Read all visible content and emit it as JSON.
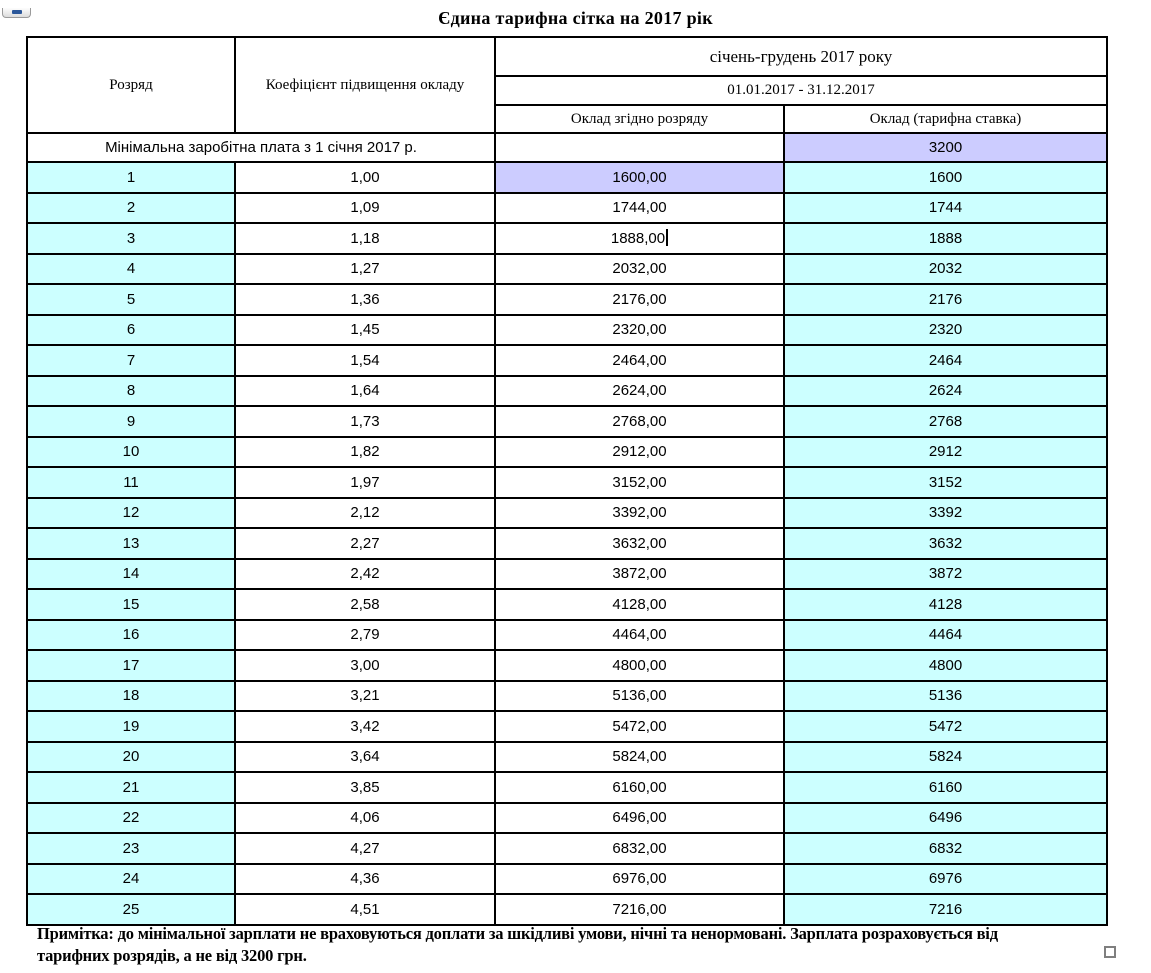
{
  "page": {
    "title": "Єдина тарифна сітка на 2017 рік"
  },
  "colors": {
    "cyan": "#CCFFFF",
    "lavender": "#CCCCFF",
    "border": "#000000",
    "accent_handle_blue": "#2B579A"
  },
  "table": {
    "headers": {
      "grade": "Розряд",
      "coefficient": "Коефіцієнт підвищення окладу",
      "period_group": "січень-грудень 2017 року",
      "period_dates": "01.01.2017 - 31.12.2017",
      "salary_by_grade": "Оклад згідно розряду",
      "tariff_rate": "Оклад (тарифна ставка)"
    },
    "min_wage_row": {
      "label": "Мінімальна заробітна плата з 1 січня 2017 р.",
      "salary_by_grade": "",
      "tariff_rate": "3200"
    },
    "caret_at_grade": "3",
    "rows": [
      {
        "grade": "1",
        "coefficient": "1,00",
        "salary_by_grade": "1600,00",
        "tariff_rate": "1600",
        "highlight_salary": true
      },
      {
        "grade": "2",
        "coefficient": "1,09",
        "salary_by_grade": "1744,00",
        "tariff_rate": "1744"
      },
      {
        "grade": "3",
        "coefficient": "1,18",
        "salary_by_grade": "1888,00",
        "tariff_rate": "1888"
      },
      {
        "grade": "4",
        "coefficient": "1,27",
        "salary_by_grade": "2032,00",
        "tariff_rate": "2032"
      },
      {
        "grade": "5",
        "coefficient": "1,36",
        "salary_by_grade": "2176,00",
        "tariff_rate": "2176"
      },
      {
        "grade": "6",
        "coefficient": "1,45",
        "salary_by_grade": "2320,00",
        "tariff_rate": "2320"
      },
      {
        "grade": "7",
        "coefficient": "1,54",
        "salary_by_grade": "2464,00",
        "tariff_rate": "2464"
      },
      {
        "grade": "8",
        "coefficient": "1,64",
        "salary_by_grade": "2624,00",
        "tariff_rate": "2624"
      },
      {
        "grade": "9",
        "coefficient": "1,73",
        "salary_by_grade": "2768,00",
        "tariff_rate": "2768"
      },
      {
        "grade": "10",
        "coefficient": "1,82",
        "salary_by_grade": "2912,00",
        "tariff_rate": "2912"
      },
      {
        "grade": "11",
        "coefficient": "1,97",
        "salary_by_grade": "3152,00",
        "tariff_rate": "3152"
      },
      {
        "grade": "12",
        "coefficient": "2,12",
        "salary_by_grade": "3392,00",
        "tariff_rate": "3392"
      },
      {
        "grade": "13",
        "coefficient": "2,27",
        "salary_by_grade": "3632,00",
        "tariff_rate": "3632"
      },
      {
        "grade": "14",
        "coefficient": "2,42",
        "salary_by_grade": "3872,00",
        "tariff_rate": "3872"
      },
      {
        "grade": "15",
        "coefficient": "2,58",
        "salary_by_grade": "4128,00",
        "tariff_rate": "4128"
      },
      {
        "grade": "16",
        "coefficient": "2,79",
        "salary_by_grade": "4464,00",
        "tariff_rate": "4464"
      },
      {
        "grade": "17",
        "coefficient": "3,00",
        "salary_by_grade": "4800,00",
        "tariff_rate": "4800"
      },
      {
        "grade": "18",
        "coefficient": "3,21",
        "salary_by_grade": "5136,00",
        "tariff_rate": "5136"
      },
      {
        "grade": "19",
        "coefficient": "3,42",
        "salary_by_grade": "5472,00",
        "tariff_rate": "5472"
      },
      {
        "grade": "20",
        "coefficient": "3,64",
        "salary_by_grade": "5824,00",
        "tariff_rate": "5824"
      },
      {
        "grade": "21",
        "coefficient": "3,85",
        "salary_by_grade": "6160,00",
        "tariff_rate": "6160"
      },
      {
        "grade": "22",
        "coefficient": "4,06",
        "salary_by_grade": "6496,00",
        "tariff_rate": "6496"
      },
      {
        "grade": "23",
        "coefficient": "4,27",
        "salary_by_grade": "6832,00",
        "tariff_rate": "6832"
      },
      {
        "grade": "24",
        "coefficient": "4,36",
        "salary_by_grade": "6976,00",
        "tariff_rate": "6976"
      },
      {
        "grade": "25",
        "coefficient": "4,51",
        "salary_by_grade": "7216,00",
        "tariff_rate": "7216"
      }
    ]
  },
  "note": "Примітка: до мінімальної зарплати не враховуються доплати за шкідливі умови, нічні та ненормовані. Зарплата розраховується від тарифних розрядів, а не від 3200 грн."
}
